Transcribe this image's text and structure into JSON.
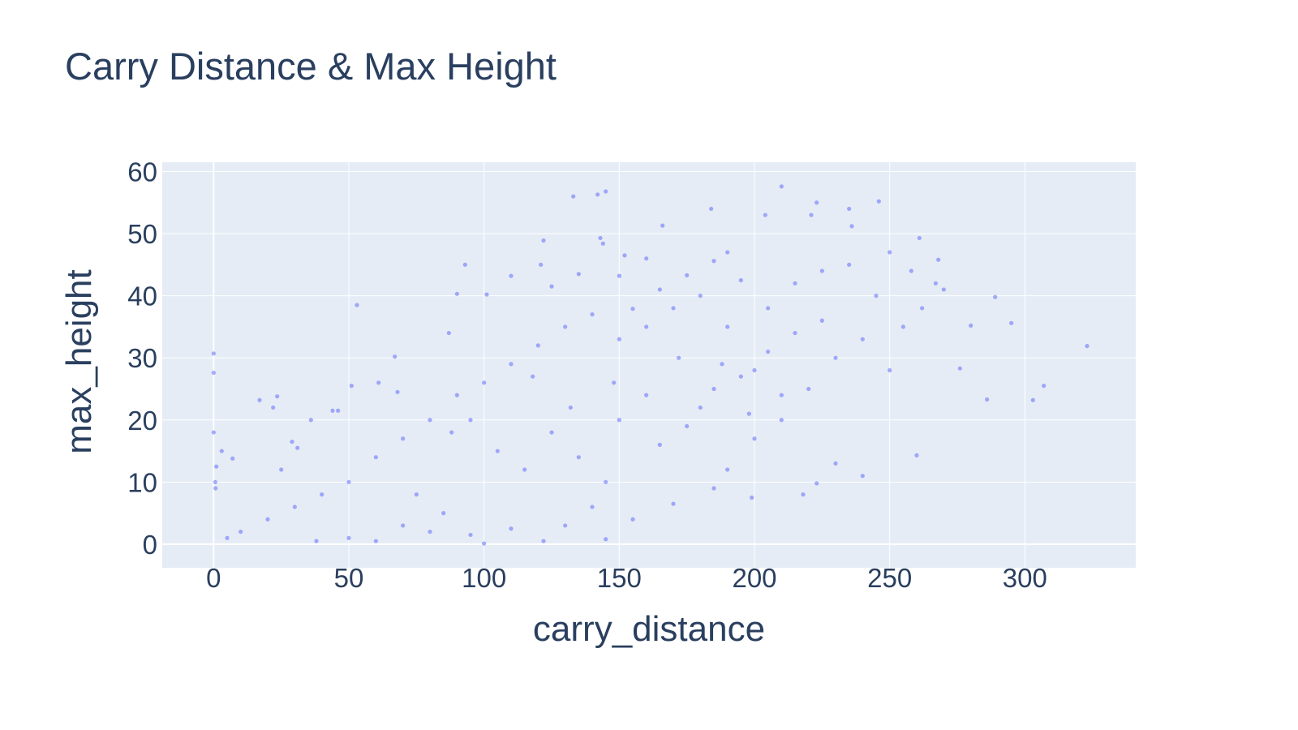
{
  "chart_data": {
    "type": "scatter",
    "title": "Carry Distance & Max Height",
    "xlabel": "carry_distance",
    "ylabel": "max_height",
    "xlim": [
      -19,
      341
    ],
    "ylim": [
      -3.8,
      61.5
    ],
    "x_ticks": [
      0,
      50,
      100,
      150,
      200,
      250,
      300
    ],
    "y_ticks": [
      0,
      10,
      20,
      30,
      40,
      50,
      60
    ],
    "grid": true,
    "legend": "none",
    "colors": {
      "marker": "#636efa",
      "plot_background": "#e5ecf6",
      "grid": "#ffffff",
      "text": "#2a3f5f"
    },
    "marker_opacity": 0.55,
    "series": [
      {
        "values": [
          [
            0,
            30.7
          ],
          [
            0,
            27.6
          ],
          [
            0,
            18
          ],
          [
            0.6,
            10
          ],
          [
            0.7,
            9
          ],
          [
            1,
            12.5
          ],
          [
            3,
            15
          ],
          [
            7,
            13.8
          ],
          [
            17,
            23.2
          ],
          [
            23.5,
            23.8
          ],
          [
            22,
            22
          ],
          [
            25,
            12
          ],
          [
            29,
            16.5
          ],
          [
            31,
            15.5
          ],
          [
            36,
            20
          ],
          [
            44,
            21.5
          ],
          [
            46,
            21.5
          ],
          [
            51,
            25.5
          ],
          [
            53,
            38.5
          ],
          [
            61,
            26
          ],
          [
            67,
            30.2
          ],
          [
            68,
            24.5
          ],
          [
            87,
            34
          ],
          [
            90,
            40.3
          ],
          [
            93,
            45
          ],
          [
            101,
            40.2
          ],
          [
            110,
            43.2
          ],
          [
            121,
            45
          ],
          [
            122,
            48.9
          ],
          [
            125,
            41.5
          ],
          [
            133,
            56
          ],
          [
            135,
            43.5
          ],
          [
            142,
            56.3
          ],
          [
            143,
            49.3
          ],
          [
            144,
            48.4
          ],
          [
            145,
            56.8
          ],
          [
            150,
            43.2
          ],
          [
            152,
            46.5
          ],
          [
            160,
            46
          ],
          [
            166,
            51.3
          ],
          [
            184,
            54
          ],
          [
            190,
            47
          ],
          [
            204,
            53
          ],
          [
            210,
            57.6
          ],
          [
            221,
            53
          ],
          [
            223,
            55
          ],
          [
            235,
            54
          ],
          [
            236,
            51.2
          ],
          [
            246,
            55.2
          ],
          [
            250,
            47
          ],
          [
            261,
            49.3
          ],
          [
            258,
            44
          ],
          [
            268,
            45.8
          ],
          [
            267,
            42
          ],
          [
            280,
            35.2
          ],
          [
            289,
            39.8
          ],
          [
            295,
            35.6
          ],
          [
            276,
            28.3
          ],
          [
            286,
            23.3
          ],
          [
            303,
            23.2
          ],
          [
            307,
            25.5
          ],
          [
            323,
            31.9
          ],
          [
            260,
            14.3
          ],
          [
            240,
            11
          ],
          [
            218,
            8
          ],
          [
            199,
            7.5
          ],
          [
            223,
            9.8
          ],
          [
            230,
            13
          ],
          [
            145,
            0.8
          ],
          [
            122,
            0.5
          ],
          [
            100,
            0.1
          ],
          [
            60,
            0.5
          ],
          [
            38,
            0.5
          ],
          [
            50,
            1
          ],
          [
            80,
            2
          ],
          [
            70,
            3
          ],
          [
            95,
            1.5
          ],
          [
            110,
            2.5
          ],
          [
            85,
            5
          ],
          [
            75,
            8
          ],
          [
            130,
            3
          ],
          [
            140,
            6
          ],
          [
            155,
            4
          ],
          [
            170,
            6.5
          ],
          [
            185,
            9
          ],
          [
            190,
            12
          ],
          [
            200,
            17
          ],
          [
            210,
            20
          ],
          [
            220,
            25
          ],
          [
            230,
            30
          ],
          [
            240,
            33
          ],
          [
            250,
            28
          ],
          [
            255,
            35
          ],
          [
            262,
            38
          ],
          [
            270,
            41
          ],
          [
            245,
            40
          ],
          [
            235,
            45
          ],
          [
            225,
            44
          ],
          [
            215,
            42
          ],
          [
            205,
            38
          ],
          [
            195,
            42.5
          ],
          [
            185,
            45.6
          ],
          [
            175,
            43.3
          ],
          [
            165,
            41
          ],
          [
            155,
            37.9
          ],
          [
            140,
            37
          ],
          [
            130,
            35
          ],
          [
            120,
            32
          ],
          [
            110,
            29
          ],
          [
            100,
            26
          ],
          [
            90,
            24
          ],
          [
            80,
            20
          ],
          [
            70,
            17
          ],
          [
            60,
            14
          ],
          [
            50,
            10
          ],
          [
            40,
            8
          ],
          [
            30,
            6
          ],
          [
            20,
            4
          ],
          [
            10,
            2
          ],
          [
            5,
            1
          ],
          [
            148,
            26
          ],
          [
            132,
            22
          ],
          [
            118,
            27
          ],
          [
            160,
            24
          ],
          [
            172,
            30
          ],
          [
            180,
            22
          ],
          [
            195,
            27
          ],
          [
            205,
            31
          ],
          [
            215,
            34
          ],
          [
            225,
            36
          ],
          [
            95,
            20
          ],
          [
            88,
            18
          ],
          [
            105,
            15
          ],
          [
            115,
            12
          ],
          [
            125,
            18
          ],
          [
            135,
            14
          ],
          [
            145,
            10
          ],
          [
            150,
            20
          ],
          [
            165,
            16
          ],
          [
            175,
            19
          ],
          [
            185,
            25
          ],
          [
            160,
            35
          ],
          [
            170,
            38
          ],
          [
            150,
            33
          ],
          [
            180,
            40
          ],
          [
            190,
            35
          ],
          [
            200,
            28
          ],
          [
            210,
            24
          ],
          [
            198,
            21
          ],
          [
            188,
            29
          ]
        ]
      }
    ]
  }
}
